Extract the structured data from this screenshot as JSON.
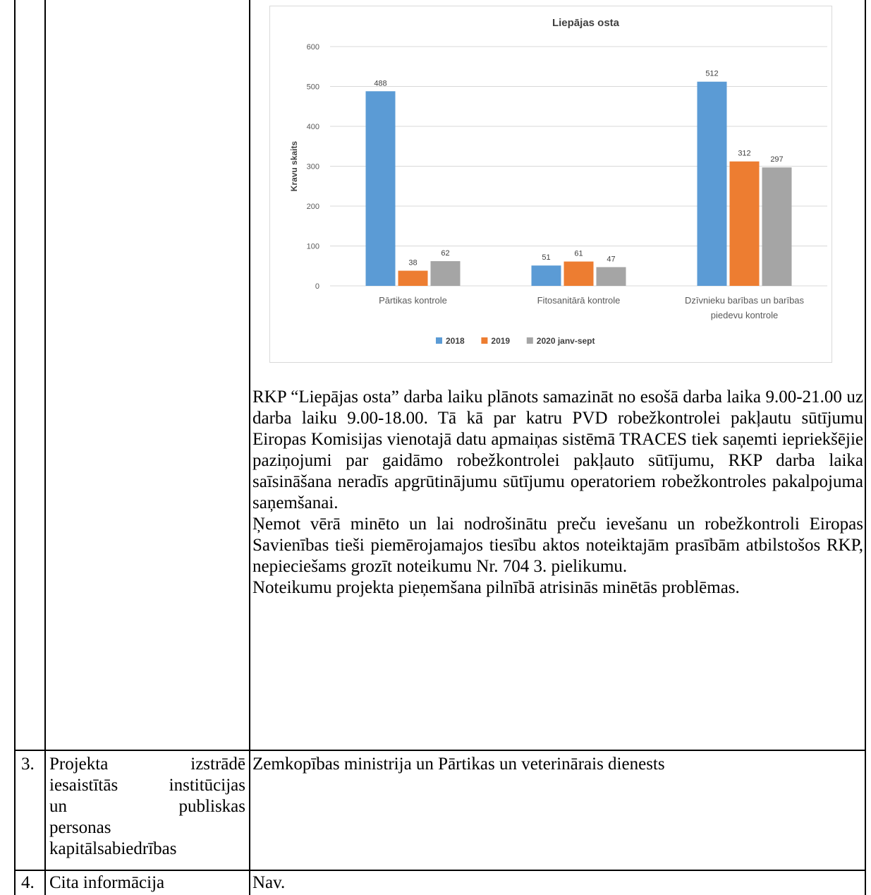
{
  "chart_data": {
    "type": "bar",
    "title": "Liepājas osta",
    "ylabel": "Kravu skaits",
    "xlabel": "",
    "ylim": [
      0,
      600
    ],
    "yticks": [
      0,
      100,
      200,
      300,
      400,
      500,
      600
    ],
    "categories": [
      [
        "Pārtikas kontrole"
      ],
      [
        "Fitosanitārā kontrole"
      ],
      [
        "Dzīvnieku barības un barības",
        "piedevu kontrole"
      ]
    ],
    "series": [
      {
        "name": "2018",
        "color": "#5b9bd5",
        "values": [
          488,
          51,
          512
        ]
      },
      {
        "name": "2019",
        "color": "#ed7d31",
        "values": [
          38,
          61,
          312
        ]
      },
      {
        "name": "2020 janv-sept",
        "color": "#a5a5a5",
        "values": [
          62,
          47,
          297
        ]
      }
    ],
    "legend_position": "bottom",
    "grid": true
  },
  "row2": {
    "paragraphs": [
      "RKP “Liepājas osta” darba laiku plānots samazināt no esošā darba laika 9.00-21.00 uz darba laiku 9.00-18.00. Tā kā par katru PVD robežkontrolei pakļautu sūtījumu Eiropas Komisijas vienotajā datu apmaiņas sistēmā TRACES tiek saņemti iepriekšējie paziņojumi par gaidāmo robežkontrolei pakļauto sūtījumu, RKP darba laika saīsināšana neradīs apgrūtinājumu sūtījumu operatoriem robežkontroles pakalpojuma saņemšanai.",
      "Ņemot vērā minēto un lai nodrošinātu preču ievešanu un robežkontroli Eiropas Savienības tieši piemērojamajos tiesību aktos noteiktajām prasībām atbilstošos RKP, nepieciešams grozīt noteikumu Nr. 704 3. pielikumu.",
      "Noteikumu projekta pieņemšana pilnībā atrisinās minētās problēmas."
    ]
  },
  "row3": {
    "num": "3.",
    "label_lines": [
      "Projekta izstrādē",
      "iesaistītās institūcijas",
      "un publiskas",
      "personas",
      "kapitālsabiedrības"
    ],
    "content": "Zemkopības ministrija un Pārtikas un veterinārais dienests"
  },
  "row4": {
    "num": "4.",
    "label": "Cita informācija",
    "content": "Nav."
  }
}
